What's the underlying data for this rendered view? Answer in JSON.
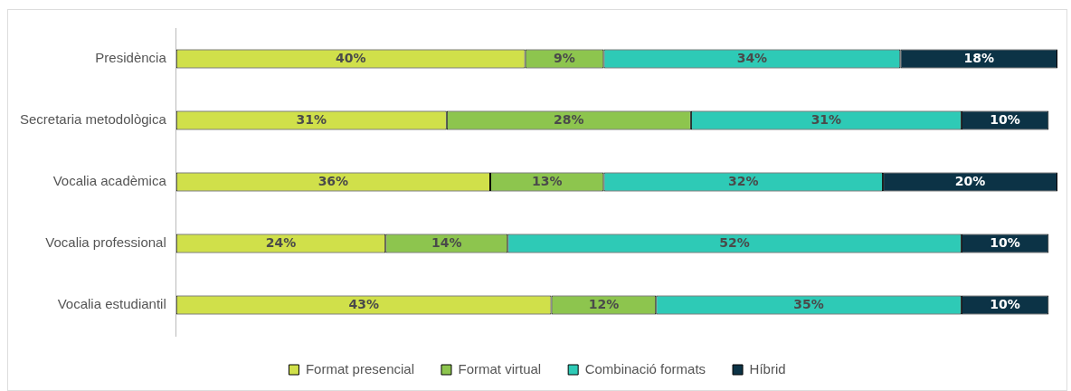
{
  "chart_data": {
    "type": "bar",
    "orientation": "horizontal",
    "stacked": true,
    "legend": "bottom",
    "categories": [
      "Presidència",
      "Secretaria metodològica",
      "Vocalia acadèmica",
      "Vocalia professional",
      "Vocalia estudiantil"
    ],
    "series": [
      {
        "name": "Format presencial",
        "color": "#d0e04a",
        "values": [
          40,
          31,
          36,
          24,
          43
        ],
        "value_labels": [
          "40%",
          "31%",
          "36%",
          "24%",
          "43%"
        ]
      },
      {
        "name": "Format virtual",
        "color": "#8dc54e",
        "values": [
          9,
          28,
          13,
          14,
          12
        ],
        "value_labels": [
          "9%",
          "28%",
          "13%",
          "14%",
          "12%"
        ]
      },
      {
        "name": "Combinació formats",
        "color": "#2ecab6",
        "values": [
          34,
          31,
          32,
          52,
          35
        ],
        "value_labels": [
          "34%",
          "31%",
          "32%",
          "52%",
          "35%"
        ]
      },
      {
        "name": "Híbrid",
        "color": "#0c3346",
        "values": [
          18,
          10,
          20,
          10,
          10
        ],
        "value_labels": [
          "18%",
          "10%",
          "20%",
          "10%",
          "10%"
        ]
      }
    ]
  }
}
